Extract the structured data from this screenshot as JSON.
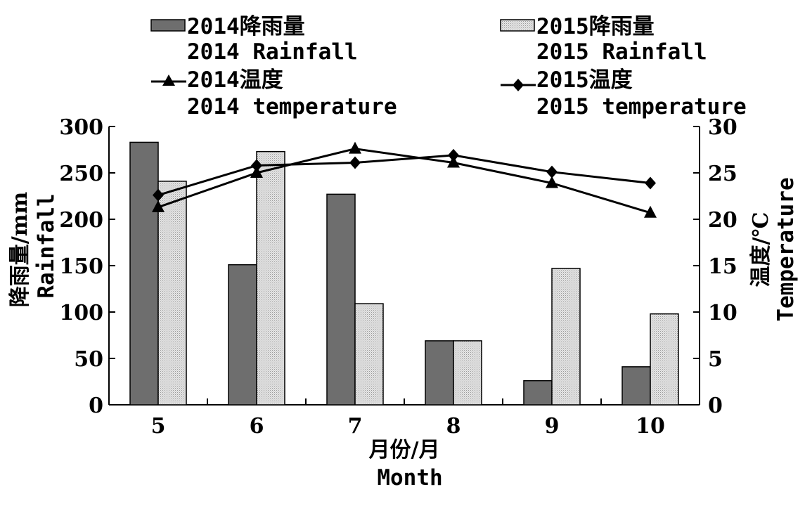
{
  "chart_data": {
    "type": "bar",
    "categories": [
      "5",
      "6",
      "7",
      "8",
      "9",
      "10"
    ],
    "series": [
      {
        "name": "2014降雨量 2014 Rainfall",
        "kind": "bar",
        "axis": "left",
        "color": "#6e6e6e",
        "values": [
          283,
          151,
          227,
          69,
          26,
          41
        ]
      },
      {
        "name": "2015降雨量 2015 Rainfall",
        "kind": "bar",
        "axis": "left",
        "color": "#d9d9d9",
        "values": [
          241,
          273,
          109,
          69,
          147,
          98
        ]
      },
      {
        "name": "2014温度 2014 temperature",
        "kind": "line",
        "marker": "triangle",
        "axis": "right",
        "color": "#000000",
        "values": [
          21.3,
          25.0,
          27.6,
          26.1,
          23.9,
          20.7
        ]
      },
      {
        "name": "2015温度 2015 temperature",
        "kind": "line",
        "marker": "diamond",
        "axis": "right",
        "color": "#000000",
        "values": [
          22.6,
          25.8,
          26.1,
          26.9,
          25.1,
          23.9
        ]
      }
    ],
    "xlabel": [
      "月份/月",
      "Month"
    ],
    "ylabel_left": [
      "降雨量/mm",
      "Rainfall"
    ],
    "ylabel_right": [
      "温度/℃",
      "Temperature"
    ],
    "ylim_left": [
      0,
      300
    ],
    "yticks_left": [
      "0",
      "50",
      "100",
      "150",
      "200",
      "250",
      "300"
    ],
    "ylim_right": [
      0,
      30
    ],
    "yticks_right": [
      "0",
      "5",
      "10",
      "15",
      "20",
      "25",
      "30"
    ],
    "grid": false,
    "legend_position": "top",
    "legend": [
      {
        "line1": "2014降雨量",
        "line2": "2014 Rainfall"
      },
      {
        "line1": "2015降雨量",
        "line2": "2015 Rainfall"
      },
      {
        "line1": "2014温度",
        "line2": "2014 temperature"
      },
      {
        "line1": "2015温度",
        "line2": "2015 temperature"
      }
    ]
  }
}
